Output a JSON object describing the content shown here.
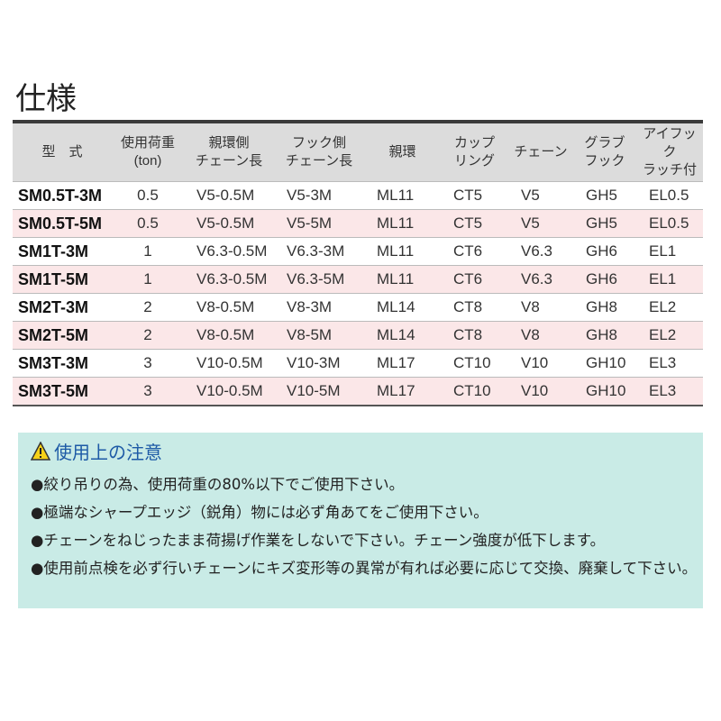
{
  "title": "仕様",
  "table": {
    "headers": [
      "型　式",
      "使用荷重\n(ton)",
      "親環側\nチェーン長",
      "フック側\nチェーン長",
      "親環",
      "カップ\nリング",
      "チェーン",
      "グラブ\nフック",
      "アイフック\nラッチ付"
    ],
    "rows": [
      [
        "SM0.5T-3M",
        "0.5",
        "V5-0.5M",
        "V5-3M",
        "ML11",
        "CT5",
        "V5",
        "GH5",
        "EL0.5"
      ],
      [
        "SM0.5T-5M",
        "0.5",
        "V5-0.5M",
        "V5-5M",
        "ML11",
        "CT5",
        "V5",
        "GH5",
        "EL0.5"
      ],
      [
        "SM1T-3M",
        "1",
        "V6.3-0.5M",
        "V6.3-3M",
        "ML11",
        "CT6",
        "V6.3",
        "GH6",
        "EL1"
      ],
      [
        "SM1T-5M",
        "1",
        "V6.3-0.5M",
        "V6.3-5M",
        "ML11",
        "CT6",
        "V6.3",
        "GH6",
        "EL1"
      ],
      [
        "SM2T-3M",
        "2",
        "V8-0.5M",
        "V8-3M",
        "ML14",
        "CT8",
        "V8",
        "GH8",
        "EL2"
      ],
      [
        "SM2T-5M",
        "2",
        "V8-0.5M",
        "V8-5M",
        "ML14",
        "CT8",
        "V8",
        "GH8",
        "EL2"
      ],
      [
        "SM3T-3M",
        "3",
        "V10-0.5M",
        "V10-3M",
        "ML17",
        "CT10",
        "V10",
        "GH10",
        "EL3"
      ],
      [
        "SM3T-5M",
        "3",
        "V10-0.5M",
        "V10-5M",
        "ML17",
        "CT10",
        "V10",
        "GH10",
        "EL3"
      ]
    ]
  },
  "notice": {
    "icon": "warning-icon",
    "title": "使用上の注意",
    "items": [
      "●絞り吊りの為、使用荷重の80%以下でご使用下さい。",
      "●極端なシャープエッジ（鋭角）物には必ず角あてをご使用下さい。",
      "●チェーンをねじったまま荷揚げ作業をしないで下さい。チェーン強度が低下します。",
      "●使用前点検を必ず行いチェーンにキズ変形等の異常が有れば必要に応じて交換、廃棄して下さい。"
    ]
  },
  "colors": {
    "header_bg": "#dcdcdc",
    "alt_row": "#fbe7e8",
    "notice_bg": "#c9ebe6",
    "notice_title": "#1d5aa6"
  }
}
